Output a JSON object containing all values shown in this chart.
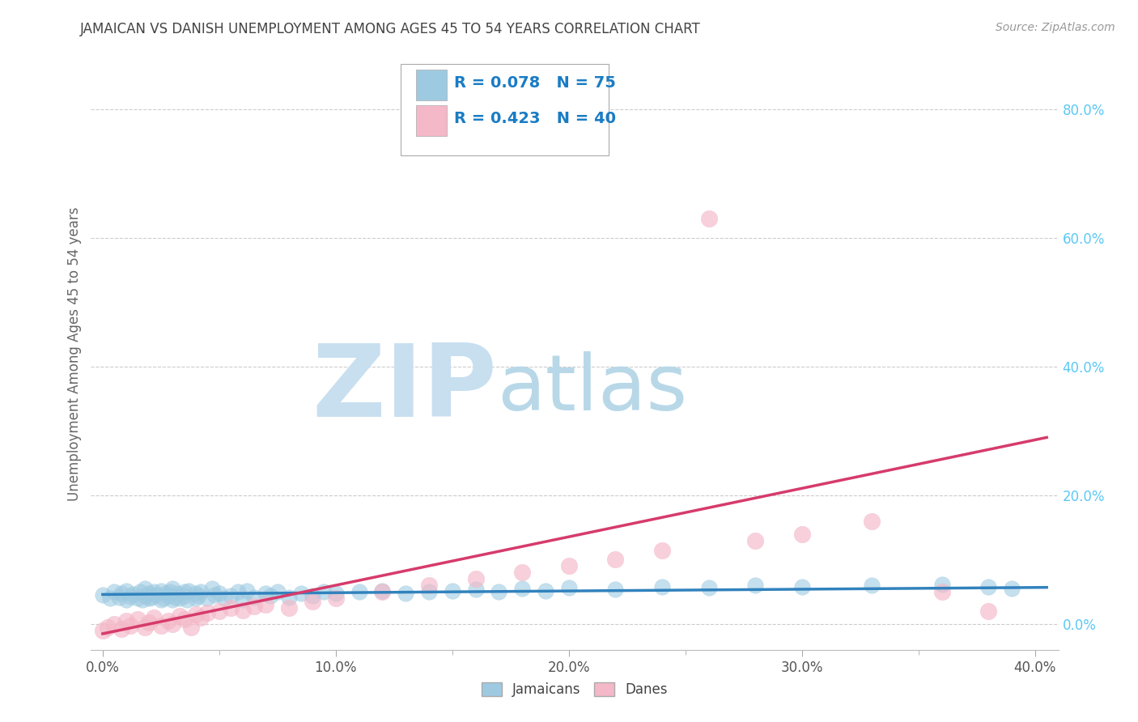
{
  "title": "JAMAICAN VS DANISH UNEMPLOYMENT AMONG AGES 45 TO 54 YEARS CORRELATION CHART",
  "source": "Source: ZipAtlas.com",
  "ylabel": "Unemployment Among Ages 45 to 54 years",
  "xlim": [
    -0.005,
    0.41
  ],
  "ylim": [
    -0.04,
    0.88
  ],
  "xticks": [
    0.0,
    0.1,
    0.2,
    0.3,
    0.4
  ],
  "yticks_right": [
    0.0,
    0.2,
    0.4,
    0.6,
    0.8
  ],
  "r_jamaicans": 0.078,
  "n_jamaicans": 75,
  "r_danes": 0.423,
  "n_danes": 40,
  "color_jamaicans": "#9ecae1",
  "color_danes": "#f4b8c8",
  "color_jamaicans_line": "#3182bd",
  "color_danes_line": "#d63b6b",
  "watermark_zip": "ZIP",
  "watermark_atlas": "atlas",
  "watermark_color_zip": "#c8dff0",
  "watermark_color_atlas": "#b8d8e8",
  "background_color": "#ffffff",
  "grid_color": "#cccccc",
  "title_color": "#444444",
  "right_tick_color": "#5bc8f5",
  "legend_text_color": "#1a7cc4",
  "legend_n_color": "#1a7cc4",
  "jam_x": [
    0.0,
    0.003,
    0.005,
    0.007,
    0.008,
    0.01,
    0.01,
    0.012,
    0.013,
    0.015,
    0.016,
    0.017,
    0.018,
    0.018,
    0.02,
    0.02,
    0.021,
    0.022,
    0.023,
    0.025,
    0.025,
    0.026,
    0.027,
    0.028,
    0.029,
    0.03,
    0.03,
    0.031,
    0.032,
    0.033,
    0.035,
    0.035,
    0.036,
    0.037,
    0.04,
    0.04,
    0.041,
    0.042,
    0.045,
    0.047,
    0.048,
    0.05,
    0.052,
    0.055,
    0.058,
    0.06,
    0.062,
    0.065,
    0.07,
    0.072,
    0.075,
    0.08,
    0.085,
    0.09,
    0.095,
    0.1,
    0.11,
    0.12,
    0.13,
    0.14,
    0.15,
    0.16,
    0.17,
    0.18,
    0.19,
    0.2,
    0.22,
    0.24,
    0.26,
    0.28,
    0.3,
    0.33,
    0.36,
    0.38,
    0.39
  ],
  "jam_y": [
    0.045,
    0.04,
    0.05,
    0.042,
    0.048,
    0.038,
    0.052,
    0.043,
    0.047,
    0.04,
    0.05,
    0.038,
    0.044,
    0.055,
    0.04,
    0.048,
    0.042,
    0.05,
    0.045,
    0.038,
    0.052,
    0.04,
    0.048,
    0.044,
    0.05,
    0.038,
    0.055,
    0.042,
    0.048,
    0.04,
    0.044,
    0.05,
    0.038,
    0.052,
    0.04,
    0.048,
    0.044,
    0.05,
    0.04,
    0.055,
    0.045,
    0.048,
    0.04,
    0.044,
    0.05,
    0.038,
    0.052,
    0.042,
    0.048,
    0.044,
    0.05,
    0.042,
    0.048,
    0.044,
    0.05,
    0.048,
    0.05,
    0.052,
    0.048,
    0.05,
    0.052,
    0.054,
    0.05,
    0.055,
    0.052,
    0.056,
    0.054,
    0.058,
    0.056,
    0.06,
    0.058,
    0.06,
    0.062,
    0.058,
    0.055
  ],
  "dan_x": [
    0.0,
    0.002,
    0.005,
    0.008,
    0.01,
    0.012,
    0.015,
    0.018,
    0.02,
    0.022,
    0.025,
    0.028,
    0.03,
    0.033,
    0.035,
    0.038,
    0.04,
    0.042,
    0.045,
    0.05,
    0.055,
    0.06,
    0.065,
    0.07,
    0.08,
    0.09,
    0.1,
    0.12,
    0.14,
    0.16,
    0.18,
    0.2,
    0.22,
    0.24,
    0.26,
    0.28,
    0.3,
    0.33,
    0.36,
    0.38
  ],
  "dan_y": [
    -0.01,
    -0.005,
    0.0,
    -0.008,
    0.005,
    -0.002,
    0.008,
    -0.005,
    0.002,
    0.01,
    -0.003,
    0.005,
    0.0,
    0.012,
    0.008,
    -0.005,
    0.015,
    0.01,
    0.018,
    0.02,
    0.025,
    0.022,
    0.028,
    0.03,
    0.025,
    0.035,
    0.04,
    0.05,
    0.06,
    0.07,
    0.08,
    0.09,
    0.1,
    0.115,
    0.63,
    0.13,
    0.14,
    0.16,
    0.05,
    0.02
  ],
  "jam_trend": [
    0.046,
    0.057
  ],
  "dan_trend": [
    -0.015,
    0.29
  ]
}
